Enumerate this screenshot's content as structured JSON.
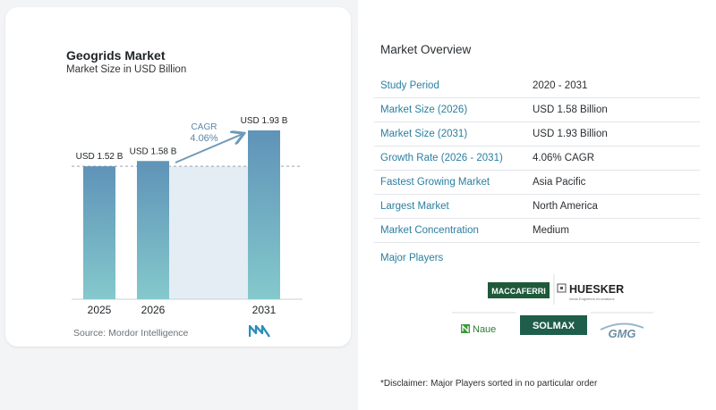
{
  "chart_data": {
    "type": "bar",
    "title": "Geogrids Market",
    "subtitle": "Market Size in USD Billion",
    "categories": [
      "2025",
      "2026",
      "2031"
    ],
    "values": [
      1.52,
      1.58,
      1.93
    ],
    "data_labels": [
      "USD 1.52 B",
      "USD 1.58 B",
      "USD 1.93 B"
    ],
    "ylim": [
      0,
      1.93
    ],
    "annotation": {
      "label": "CAGR",
      "value": "4.06%",
      "from": "2026",
      "to": "2031"
    },
    "colors": {
      "bar_top": "#5f93b8",
      "bar_bottom": "#84c9cc",
      "band": "#e4edf4",
      "arrow": "#6f9ab8",
      "cagr_text": "#5e86a6"
    }
  },
  "source": "Source:  Mordor Intelligence",
  "logo_icon": "mordor-intelligence-logo-icon",
  "overview": {
    "title": "Market Overview",
    "rows": [
      {
        "label": "Study Period",
        "value": "2020 - 2031"
      },
      {
        "label": "Market Size (2026)",
        "value": "USD 1.58 Billion"
      },
      {
        "label": "Market Size (2031)",
        "value": "USD 1.93 Billion"
      },
      {
        "label": "Growth Rate (2026 - 2031)",
        "value": "4.06% CAGR"
      },
      {
        "label": "Fastest Growing Market",
        "value": "Asia Pacific"
      },
      {
        "label": "Largest Market",
        "value": "North America"
      },
      {
        "label": "Market Concentration",
        "value": "Medium"
      }
    ],
    "players_title": "Major Players",
    "players": [
      "MACCAFERRI",
      "HUESKER",
      "Naue",
      "SOLMAX",
      "GMG"
    ]
  },
  "disclaimer": "*Disclaimer: Major Players sorted in no particular order"
}
